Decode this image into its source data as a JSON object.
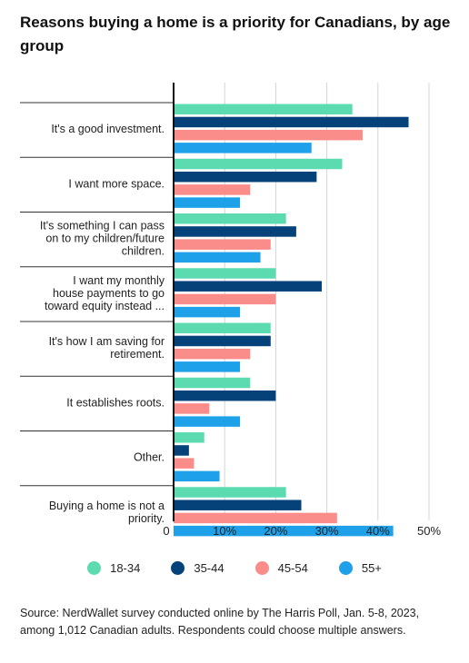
{
  "title": "Reasons buying a home is a priority for Canadians, by age group",
  "source": "Source: NerdWallet survey conducted online by The Harris Poll, Jan. 5-8, 2023, among 1,012 Canadian adults. Respondents could choose multiple answers.",
  "colors": {
    "18-34": "#5ddbb0",
    "35-44": "#05427a",
    "45-54": "#fa8c8a",
    "55+": "#1fa1ea"
  },
  "chart_data": {
    "type": "bar",
    "orientation": "horizontal",
    "categories": [
      [
        "It's a good investment."
      ],
      [
        "I want more space."
      ],
      [
        "It's something I can pass",
        "on to my children/future",
        "children."
      ],
      [
        "I want my monthly",
        "house payments to go",
        "toward equity instead ..."
      ],
      [
        "It's how I am saving for",
        "retirement."
      ],
      [
        "It establishes roots."
      ],
      [
        "Other."
      ],
      [
        "Buying a home is not a",
        "priority."
      ]
    ],
    "series": [
      {
        "name": "18-34",
        "values": [
          35,
          33,
          22,
          20,
          19,
          15,
          6,
          22
        ]
      },
      {
        "name": "35-44",
        "values": [
          46,
          28,
          24,
          29,
          19,
          20,
          3,
          25
        ]
      },
      {
        "name": "45-54",
        "values": [
          37,
          15,
          19,
          20,
          15,
          7,
          4,
          32
        ]
      },
      {
        "name": "55+",
        "values": [
          27,
          13,
          17,
          13,
          13,
          13,
          9,
          43
        ]
      }
    ],
    "xticks": [
      "0",
      "10%",
      "20%",
      "30%",
      "40%",
      "50%"
    ],
    "xlim": [
      0,
      50
    ],
    "grid": true,
    "legend_position": "bottom"
  }
}
